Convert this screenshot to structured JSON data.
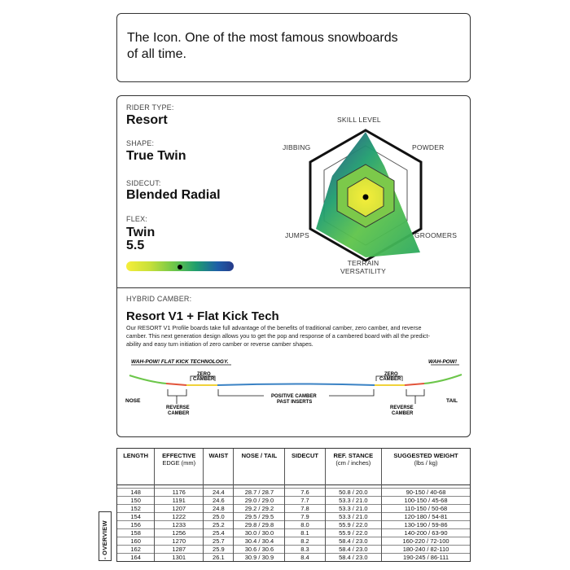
{
  "intro": {
    "text_line1": "The Icon. One of the most famous snowboards",
    "text_line2": "of all time."
  },
  "specs": {
    "rider_type_label": "RIDER TYPE:",
    "rider_type_value": "Resort",
    "shape_label": "SHAPE:",
    "shape_value": "True Twin",
    "sidecut_label": "SIDECUT:",
    "sidecut_value": "Blended Radial",
    "flex_label": "FLEX:",
    "flex_value_line1": "Twin",
    "flex_value_line2": "5.5",
    "flex_level_fraction": 0.5
  },
  "radar": {
    "labels": {
      "skill_level": "SKILL LEVEL",
      "powder": "POWDER",
      "groomers": "GROOMERS",
      "terrain_line1": "TERRAIN",
      "terrain_line2": "VERSATILITY",
      "jumps": "JUMPS",
      "jibbing": "JIBBING"
    }
  },
  "camber": {
    "title_label": "HYBRID CAMBER:",
    "title_value": "Resort V1 + Flat Kick Tech",
    "desc_line1": "Our RESORT V1 Profile boards take full advantage of the benefits of traditional camber, zero camber, and reverse",
    "desc_line2": "camber. This next generation design allows you to get the pop and response of a cambered board with all the predict-",
    "desc_line3": "ability and easy turn initiation of zero camber or reverse camber shapes.",
    "wah_pow_left": "WAH-POW! FLAT KICK TECHNOLOGY.",
    "wah_pow_right": "WAH-POW!",
    "zero_camber": "ZERO",
    "zero_camber2": "CAMBER",
    "reverse": "REVERSE",
    "reverse2": "CAMBER",
    "positive1": "POSITIVE CAMBER",
    "positive2": "PAST INSERTS",
    "nose": "NOSE",
    "tail": "TAIL"
  },
  "table": {
    "headers": [
      [
        "LENGTH"
      ],
      [
        "EFFECTIVE",
        "EDGE (mm)"
      ],
      [
        "WAIST"
      ],
      [
        "NOSE / TAIL"
      ],
      [
        "SIDECUT"
      ],
      [
        "REF. STANCE",
        "(cm / inches)"
      ],
      [
        "SUGGESTED WEIGHT",
        "(lbs / kg)"
      ]
    ],
    "rows": [
      [
        "148",
        "1176",
        "24.4",
        "28.7 / 28.7",
        "7.6",
        "50.8 / 20.0",
        "90-150 / 40-68"
      ],
      [
        "150",
        "1191",
        "24.6",
        "29.0 / 29.0",
        "7.7",
        "53.3 / 21.0",
        "100-150 / 45-68"
      ],
      [
        "152",
        "1207",
        "24.8",
        "29.2 / 29.2",
        "7.8",
        "53.3 / 21.0",
        "110-150 / 50-68"
      ],
      [
        "154",
        "1222",
        "25.0",
        "29.5 / 29.5",
        "7.9",
        "53.3 / 21.0",
        "120-180 / 54-81"
      ],
      [
        "156",
        "1233",
        "25.2",
        "29.8 / 29.8",
        "8.0",
        "55.9 / 22.0",
        "130-190 / 59-86"
      ],
      [
        "158",
        "1256",
        "25.4",
        "30.0 / 30.0",
        "8.1",
        "55.9 / 22.0",
        "140-200 / 63-90"
      ],
      [
        "160",
        "1270",
        "25.7",
        "30.4 / 30.4",
        "8.2",
        "58.4 / 23.0",
        "160-220 / 72-100"
      ],
      [
        "162",
        "1287",
        "25.9",
        "30.6 / 30.6",
        "8.3",
        "58.4 / 23.0",
        "180-240 / 82-110"
      ],
      [
        "164",
        "1301",
        "26.1",
        "30.9 / 30.9",
        "8.4",
        "58.4 / 23.0",
        "190-245 / 86-111"
      ]
    ]
  },
  "overview_tab": "- OVERVIEW"
}
